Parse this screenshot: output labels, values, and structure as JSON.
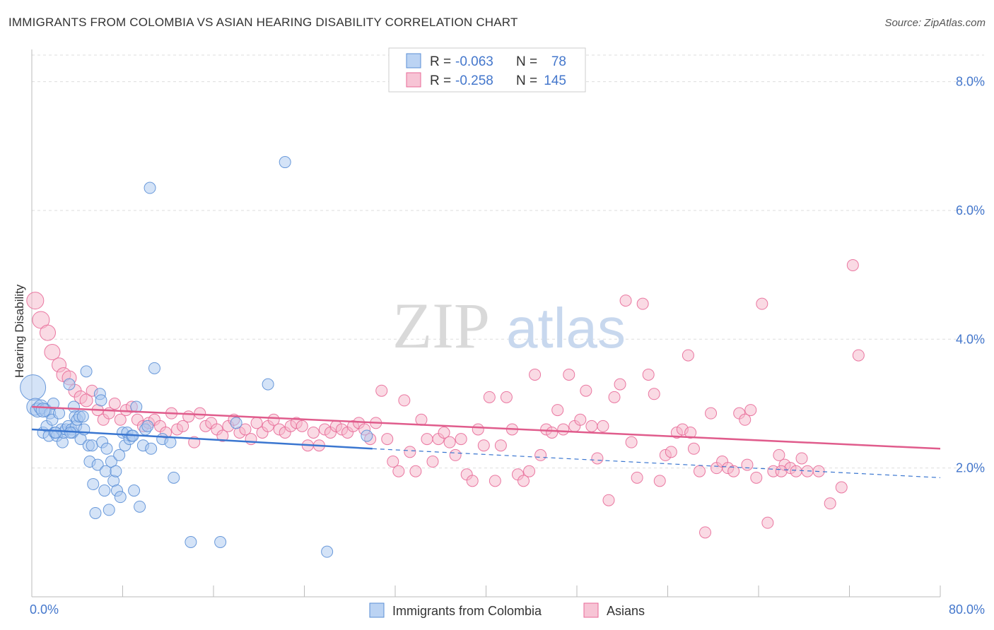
{
  "header": {
    "title": "IMMIGRANTS FROM COLOMBIA VS ASIAN HEARING DISABILITY CORRELATION CHART",
    "source": "Source: ZipAtlas.com"
  },
  "watermark": {
    "part1": "ZIP",
    "part2": "atlas"
  },
  "colors": {
    "blue": "#5b8fd6",
    "blue_fill": "#aac8f0",
    "pink": "#e86a98",
    "pink_fill": "#f5b5ca",
    "axis_text": "#4477cc",
    "grid": "#dddddd"
  },
  "legend_box": {
    "rows": [
      {
        "r_label": "R =",
        "r_value": "-0.063",
        "n_label": "N =",
        "n_value": "78",
        "series": "blue"
      },
      {
        "r_label": "R =",
        "r_value": "-0.258",
        "n_label": "N =",
        "n_value": "145",
        "series": "pink"
      }
    ]
  },
  "chart_data": {
    "type": "scatter",
    "title": "IMMIGRANTS FROM COLOMBIA VS ASIAN HEARING DISABILITY CORRELATION CHART",
    "xlabel": "",
    "ylabel": "Hearing Disability",
    "xlim": [
      0,
      80
    ],
    "ylim": [
      0,
      8.5
    ],
    "x_tick_labels": [
      "0.0%",
      "80.0%"
    ],
    "y_ticks": [
      2,
      4,
      6,
      8
    ],
    "y_tick_labels": [
      "2.0%",
      "4.0%",
      "6.0%",
      "8.0%"
    ],
    "grid": true,
    "legend_position": "bottom-center",
    "series": [
      {
        "name": "Immigrants from Colombia",
        "color": "#5b8fd6",
        "trend": {
          "x0": 0,
          "y0": 2.6,
          "x1": 30,
          "y1": 2.3,
          "dash_x1": 80,
          "dash_y1": 1.85
        },
        "points": [
          [
            0.1,
            3.25,
            18
          ],
          [
            0.3,
            2.95,
            12
          ],
          [
            0.5,
            2.9,
            10
          ],
          [
            0.8,
            2.95,
            10
          ],
          [
            1.0,
            2.55,
            8
          ],
          [
            1.2,
            2.9,
            9
          ],
          [
            1.3,
            2.65,
            8
          ],
          [
            1.5,
            2.5,
            8
          ],
          [
            1.6,
            2.85,
            8
          ],
          [
            1.8,
            2.75,
            8
          ],
          [
            1.9,
            3.0,
            8
          ],
          [
            2.0,
            2.55,
            8
          ],
          [
            2.2,
            2.5,
            8
          ],
          [
            2.4,
            2.85,
            8
          ],
          [
            2.6,
            2.6,
            8
          ],
          [
            2.7,
            2.4,
            8
          ],
          [
            2.8,
            2.55,
            8
          ],
          [
            3.0,
            2.6,
            8
          ],
          [
            3.2,
            2.65,
            8
          ],
          [
            3.3,
            3.3,
            8
          ],
          [
            3.5,
            2.6,
            8
          ],
          [
            3.6,
            2.55,
            8
          ],
          [
            3.7,
            2.95,
            8
          ],
          [
            3.8,
            2.8,
            8
          ],
          [
            3.9,
            2.65,
            8
          ],
          [
            4.0,
            2.75,
            8
          ],
          [
            4.2,
            2.8,
            8
          ],
          [
            4.3,
            2.45,
            8
          ],
          [
            4.5,
            2.8,
            8
          ],
          [
            4.6,
            2.6,
            8
          ],
          [
            4.8,
            3.5,
            8
          ],
          [
            5.0,
            2.35,
            8
          ],
          [
            5.1,
            2.1,
            8
          ],
          [
            5.3,
            2.35,
            8
          ],
          [
            5.4,
            1.75,
            8
          ],
          [
            5.6,
            1.3,
            8
          ],
          [
            5.8,
            2.05,
            8
          ],
          [
            6.0,
            3.15,
            8
          ],
          [
            6.1,
            3.05,
            8
          ],
          [
            6.2,
            2.4,
            8
          ],
          [
            6.4,
            1.65,
            8
          ],
          [
            6.5,
            1.95,
            8
          ],
          [
            6.8,
            1.35,
            8
          ],
          [
            7.0,
            2.1,
            8
          ],
          [
            7.2,
            1.8,
            8
          ],
          [
            7.4,
            1.95,
            8
          ],
          [
            7.5,
            1.65,
            8
          ],
          [
            7.7,
            2.2,
            8
          ],
          [
            7.8,
            1.55,
            8
          ],
          [
            8.0,
            2.55,
            8
          ],
          [
            8.2,
            2.35,
            8
          ],
          [
            8.4,
            2.55,
            8
          ],
          [
            8.6,
            2.45,
            8
          ],
          [
            8.8,
            2.5,
            8
          ],
          [
            9.0,
            1.65,
            8
          ],
          [
            9.2,
            2.95,
            8
          ],
          [
            9.5,
            1.4,
            8
          ],
          [
            9.8,
            2.35,
            8
          ],
          [
            10.0,
            2.6,
            8
          ],
          [
            10.2,
            2.65,
            8
          ],
          [
            10.5,
            2.3,
            8
          ],
          [
            10.8,
            3.55,
            8
          ],
          [
            11.5,
            2.45,
            8
          ],
          [
            12.5,
            1.85,
            8
          ],
          [
            14.0,
            0.85,
            8
          ],
          [
            16.6,
            0.85,
            8
          ],
          [
            20.8,
            3.3,
            8
          ],
          [
            22.3,
            6.75,
            8
          ],
          [
            26.0,
            0.7,
            8
          ],
          [
            29.5,
            2.5,
            8
          ],
          [
            10.4,
            6.35,
            8
          ],
          [
            1.0,
            2.9,
            10
          ],
          [
            2.1,
            2.55,
            8
          ],
          [
            3.4,
            2.55,
            8
          ],
          [
            6.6,
            2.3,
            8
          ],
          [
            8.9,
            2.5,
            8
          ],
          [
            12.2,
            2.4,
            8
          ],
          [
            18.0,
            2.7,
            8
          ]
        ]
      },
      {
        "name": "Asians",
        "color": "#e86a98",
        "trend": {
          "x0": 0,
          "y0": 2.95,
          "x1": 80,
          "y1": 2.3
        },
        "points": [
          [
            0.3,
            4.6,
            12
          ],
          [
            0.8,
            4.3,
            12
          ],
          [
            1.4,
            4.1,
            11
          ],
          [
            1.8,
            3.8,
            11
          ],
          [
            2.4,
            3.6,
            10
          ],
          [
            2.8,
            3.45,
            10
          ],
          [
            3.3,
            3.4,
            10
          ],
          [
            3.8,
            3.2,
            9
          ],
          [
            4.3,
            3.1,
            9
          ],
          [
            4.8,
            3.05,
            9
          ],
          [
            5.3,
            3.2,
            8
          ],
          [
            5.8,
            2.9,
            8
          ],
          [
            6.3,
            2.75,
            8
          ],
          [
            6.8,
            2.85,
            8
          ],
          [
            7.3,
            3.0,
            8
          ],
          [
            7.8,
            2.75,
            8
          ],
          [
            8.3,
            2.9,
            8
          ],
          [
            8.8,
            2.95,
            8
          ],
          [
            9.3,
            2.75,
            8
          ],
          [
            9.8,
            2.65,
            8
          ],
          [
            10.3,
            2.7,
            8
          ],
          [
            10.8,
            2.75,
            8
          ],
          [
            11.3,
            2.65,
            8
          ],
          [
            11.8,
            2.55,
            8
          ],
          [
            12.3,
            2.85,
            8
          ],
          [
            12.8,
            2.6,
            8
          ],
          [
            13.3,
            2.65,
            8
          ],
          [
            13.8,
            2.8,
            8
          ],
          [
            14.3,
            2.4,
            8
          ],
          [
            14.8,
            2.85,
            8
          ],
          [
            15.3,
            2.65,
            8
          ],
          [
            15.8,
            2.7,
            8
          ],
          [
            16.3,
            2.6,
            8
          ],
          [
            16.8,
            2.5,
            8
          ],
          [
            17.3,
            2.65,
            8
          ],
          [
            17.8,
            2.75,
            8
          ],
          [
            18.3,
            2.55,
            8
          ],
          [
            18.8,
            2.6,
            8
          ],
          [
            19.3,
            2.45,
            8
          ],
          [
            19.8,
            2.7,
            8
          ],
          [
            20.3,
            2.55,
            8
          ],
          [
            20.8,
            2.65,
            8
          ],
          [
            21.3,
            2.75,
            8
          ],
          [
            21.8,
            2.6,
            8
          ],
          [
            22.3,
            2.55,
            8
          ],
          [
            22.8,
            2.65,
            8
          ],
          [
            23.3,
            2.7,
            8
          ],
          [
            23.8,
            2.65,
            8
          ],
          [
            24.3,
            2.35,
            8
          ],
          [
            24.8,
            2.55,
            8
          ],
          [
            25.3,
            2.35,
            8
          ],
          [
            25.8,
            2.6,
            8
          ],
          [
            26.3,
            2.55,
            8
          ],
          [
            26.8,
            2.65,
            8
          ],
          [
            27.3,
            2.6,
            8
          ],
          [
            27.8,
            2.55,
            8
          ],
          [
            28.3,
            2.65,
            8
          ],
          [
            28.8,
            2.7,
            8
          ],
          [
            29.3,
            2.6,
            8
          ],
          [
            29.8,
            2.45,
            8
          ],
          [
            30.3,
            2.7,
            8
          ],
          [
            30.8,
            3.2,
            8
          ],
          [
            31.3,
            2.45,
            8
          ],
          [
            31.8,
            2.1,
            8
          ],
          [
            32.3,
            1.95,
            8
          ],
          [
            32.8,
            3.05,
            8
          ],
          [
            33.3,
            2.25,
            8
          ],
          [
            33.8,
            1.95,
            8
          ],
          [
            34.3,
            2.75,
            8
          ],
          [
            34.8,
            2.45,
            8
          ],
          [
            35.3,
            2.1,
            8
          ],
          [
            35.8,
            2.45,
            8
          ],
          [
            36.3,
            2.55,
            8
          ],
          [
            36.8,
            2.4,
            8
          ],
          [
            37.3,
            2.2,
            8
          ],
          [
            37.8,
            2.45,
            8
          ],
          [
            38.3,
            1.9,
            8
          ],
          [
            38.8,
            1.8,
            8
          ],
          [
            39.3,
            2.6,
            8
          ],
          [
            39.8,
            2.35,
            8
          ],
          [
            40.3,
            3.1,
            8
          ],
          [
            40.8,
            1.8,
            8
          ],
          [
            41.3,
            2.35,
            8
          ],
          [
            41.8,
            3.1,
            8
          ],
          [
            42.3,
            2.6,
            8
          ],
          [
            42.8,
            1.9,
            8
          ],
          [
            43.3,
            1.8,
            8
          ],
          [
            43.8,
            1.95,
            8
          ],
          [
            44.3,
            3.45,
            8
          ],
          [
            44.8,
            2.2,
            8
          ],
          [
            45.3,
            2.6,
            8
          ],
          [
            45.8,
            2.55,
            8
          ],
          [
            46.3,
            2.9,
            8
          ],
          [
            46.8,
            2.6,
            8
          ],
          [
            47.3,
            3.45,
            8
          ],
          [
            47.8,
            2.65,
            8
          ],
          [
            48.3,
            2.75,
            8
          ],
          [
            48.8,
            3.2,
            8
          ],
          [
            49.3,
            2.65,
            8
          ],
          [
            49.8,
            2.15,
            8
          ],
          [
            50.3,
            2.65,
            8
          ],
          [
            50.8,
            1.5,
            8
          ],
          [
            51.3,
            3.1,
            8
          ],
          [
            51.8,
            3.3,
            8
          ],
          [
            52.3,
            4.6,
            8
          ],
          [
            52.8,
            2.4,
            8
          ],
          [
            53.3,
            1.85,
            8
          ],
          [
            53.8,
            4.55,
            8
          ],
          [
            54.3,
            3.45,
            8
          ],
          [
            54.8,
            3.15,
            8
          ],
          [
            55.3,
            1.8,
            8
          ],
          [
            55.8,
            2.2,
            8
          ],
          [
            56.3,
            2.25,
            8
          ],
          [
            56.8,
            2.55,
            8
          ],
          [
            57.3,
            2.6,
            8
          ],
          [
            57.8,
            3.75,
            8
          ],
          [
            58.3,
            2.3,
            8
          ],
          [
            58.8,
            1.95,
            8
          ],
          [
            59.3,
            1.0,
            8
          ],
          [
            59.8,
            2.85,
            8
          ],
          [
            60.3,
            2.0,
            8
          ],
          [
            60.8,
            2.1,
            8
          ],
          [
            61.3,
            2.0,
            8
          ],
          [
            61.8,
            1.95,
            8
          ],
          [
            62.3,
            2.85,
            8
          ],
          [
            62.8,
            2.75,
            8
          ],
          [
            63.3,
            2.9,
            8
          ],
          [
            63.8,
            1.85,
            8
          ],
          [
            64.3,
            4.55,
            8
          ],
          [
            64.8,
            1.15,
            8
          ],
          [
            65.3,
            1.95,
            8
          ],
          [
            65.8,
            2.2,
            8
          ],
          [
            66.3,
            2.05,
            8
          ],
          [
            66.8,
            2.0,
            8
          ],
          [
            67.3,
            1.95,
            8
          ],
          [
            67.8,
            2.15,
            8
          ],
          [
            68.3,
            1.95,
            8
          ],
          [
            69.3,
            1.95,
            8
          ],
          [
            70.3,
            1.45,
            8
          ],
          [
            71.3,
            1.7,
            8
          ],
          [
            72.3,
            5.15,
            8
          ],
          [
            72.8,
            3.75,
            8
          ],
          [
            63.0,
            2.05,
            8
          ],
          [
            58.0,
            2.55,
            8
          ],
          [
            66.0,
            1.95,
            8
          ]
        ]
      }
    ]
  },
  "legend": {
    "items": [
      {
        "label": "Immigrants from Colombia",
        "series": "blue"
      },
      {
        "label": "Asians",
        "series": "pink"
      }
    ]
  }
}
